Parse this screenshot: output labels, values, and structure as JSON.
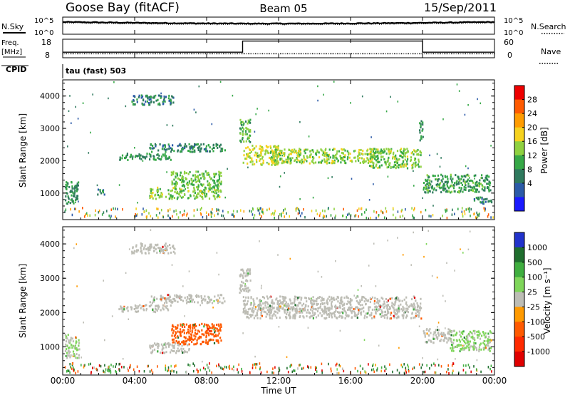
{
  "header": {
    "station": "Goose Bay (fitACF)",
    "beam": "Beam 05",
    "date": "15/Sep/2011"
  },
  "status_panels": {
    "nsky_label": "N.Sky",
    "nsearch_label": "N.Search",
    "freq_label_line1": "Freq.",
    "freq_label_line2": "[MHz]",
    "nave_label": "Nave",
    "cpid_label": "CPID",
    "cpid_value": "tau (fast) 503",
    "noise_ticks": [
      "10^5",
      "10^0"
    ],
    "freq_ticks": [
      "18",
      "8"
    ],
    "nave_ticks": [
      "60",
      "0"
    ]
  },
  "time_axis": {
    "label": "Time UT",
    "ticks": [
      "00:00",
      "04:00",
      "08:00",
      "12:00",
      "16:00",
      "20:00",
      "00:00"
    ]
  },
  "chart_data": [
    {
      "type": "heatmap",
      "name": "power",
      "ylabel": "Slant Range [km]",
      "ylim": [
        180,
        4500
      ],
      "xlim_hours": [
        0,
        24
      ],
      "yticks": [
        "4000",
        "3000",
        "2000",
        "1000"
      ],
      "colorbar_label": "Power [dB]",
      "colorbar_ticks": [
        "28",
        "24",
        "20",
        "16",
        "12",
        "8",
        "4"
      ],
      "colorbar_colors": [
        "#ee0000",
        "#ff5a00",
        "#ff9c00",
        "#f6d21e",
        "#8fd140",
        "#36a847",
        "#2f7a5e",
        "#2b5aa8",
        "#1a1aff"
      ],
      "bands": [
        {
          "t0": 0.1,
          "t1": 0.9,
          "r0": 700,
          "r1": 1400,
          "level": 10
        },
        {
          "t0": 1.8,
          "t1": 2.3,
          "r0": 980,
          "r1": 1150,
          "level": 8
        },
        {
          "t0": 3.1,
          "t1": 6.0,
          "r0": 2050,
          "r1": 2250,
          "level": 10
        },
        {
          "t0": 4.8,
          "t1": 9.0,
          "r0": 2300,
          "r1": 2550,
          "level": 9
        },
        {
          "t0": 3.8,
          "t1": 6.2,
          "r0": 3750,
          "r1": 4050,
          "level": 8
        },
        {
          "t0": 4.8,
          "t1": 8.8,
          "r0": 850,
          "r1": 1200,
          "level": 15
        },
        {
          "t0": 6.0,
          "t1": 8.8,
          "r0": 1200,
          "r1": 1700,
          "level": 14
        },
        {
          "t0": 9.8,
          "t1": 10.4,
          "r0": 2600,
          "r1": 3300,
          "level": 13
        },
        {
          "t0": 10.0,
          "t1": 12.0,
          "r0": 1900,
          "r1": 2500,
          "level": 18
        },
        {
          "t0": 11.5,
          "t1": 17.5,
          "r0": 1950,
          "r1": 2400,
          "level": 16
        },
        {
          "t0": 17.0,
          "t1": 19.9,
          "r0": 1800,
          "r1": 2400,
          "level": 15
        },
        {
          "t0": 19.8,
          "t1": 20.0,
          "r0": 2600,
          "r1": 3300,
          "level": 10
        },
        {
          "t0": 20.0,
          "t1": 23.8,
          "r0": 1050,
          "r1": 1600,
          "level": 11
        },
        {
          "t0": 22.8,
          "t1": 23.9,
          "r0": 700,
          "r1": 900,
          "level": 8
        }
      ]
    },
    {
      "type": "heatmap",
      "name": "velocity",
      "ylabel": "Slant Range [km]",
      "ylim": [
        180,
        4500
      ],
      "xlim_hours": [
        0,
        24
      ],
      "yticks": [
        "4000",
        "3000",
        "2000",
        "1000"
      ],
      "colorbar_label": "Velocity [m s⁻¹]",
      "colorbar_ticks": [
        "1000",
        "500",
        "100",
        "25",
        "-25",
        "-100",
        "-500",
        "-1000"
      ],
      "colorbar_colors": [
        "#2233cc",
        "#1f6e2e",
        "#3fae3f",
        "#7fd65a",
        "#bdbdb5",
        "#ff9a00",
        "#ff5a00",
        "#ff2a00",
        "#e00000"
      ],
      "bands": [
        {
          "t0": 0.1,
          "t1": 0.9,
          "r0": 700,
          "r1": 1400,
          "level": 20
        },
        {
          "t0": 3.1,
          "t1": 6.0,
          "r0": 2050,
          "r1": 2250,
          "level": 0
        },
        {
          "t0": 4.8,
          "t1": 9.0,
          "r0": 2300,
          "r1": 2550,
          "level": 0
        },
        {
          "t0": 3.8,
          "t1": 6.2,
          "r0": 3750,
          "r1": 4050,
          "level": 0
        },
        {
          "t0": 4.8,
          "t1": 7.0,
          "r0": 850,
          "r1": 1150,
          "level": 0
        },
        {
          "t0": 6.0,
          "t1": 8.8,
          "r0": 1100,
          "r1": 1700,
          "level": -150
        },
        {
          "t0": 9.8,
          "t1": 10.4,
          "r0": 2600,
          "r1": 3300,
          "level": 0
        },
        {
          "t0": 10.0,
          "t1": 19.9,
          "r0": 1850,
          "r1": 2500,
          "level": 0
        },
        {
          "t0": 20.0,
          "t1": 21.5,
          "r0": 1150,
          "r1": 1550,
          "level": 0
        },
        {
          "t0": 21.5,
          "t1": 23.8,
          "r0": 900,
          "r1": 1500,
          "level": 30
        }
      ]
    }
  ]
}
